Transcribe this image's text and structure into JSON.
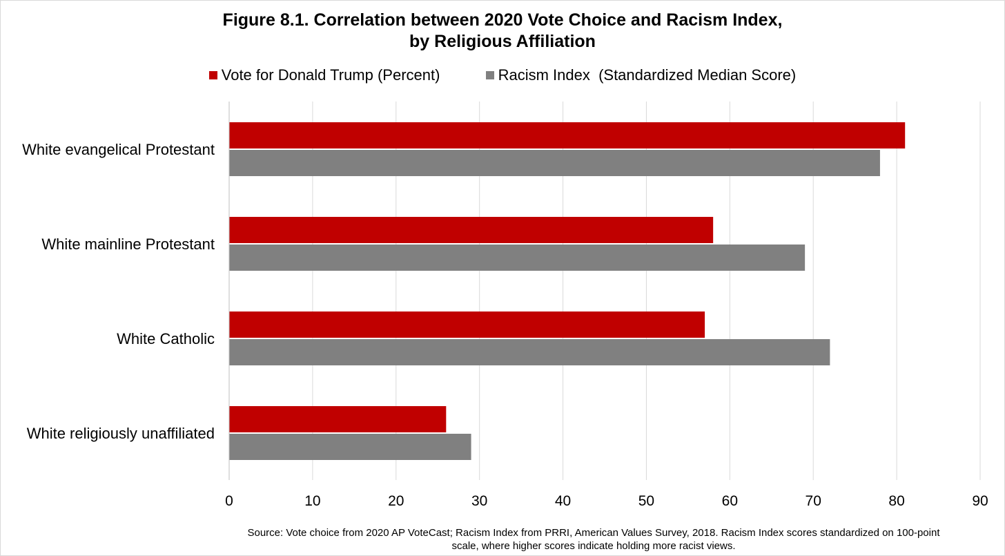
{
  "chart_data": {
    "type": "bar",
    "orientation": "horizontal",
    "title_lines": [
      "Figure 8.1. Correlation between 2020 Vote Choice and Racism Index,",
      "by Religious Affiliation"
    ],
    "categories": [
      "White evangelical Protestant",
      "White mainline Protestant",
      "White Catholic",
      "White religiously unaffiliated"
    ],
    "series": [
      {
        "name": "Vote for Donald Trump (Percent)",
        "values": [
          81,
          58,
          57,
          26
        ],
        "color": "#c00000"
      },
      {
        "name": "Racism Index  (Standardized Median Score)",
        "values": [
          78,
          69,
          72,
          29
        ],
        "color": "#808080"
      }
    ],
    "xlim": [
      0,
      90
    ],
    "xticks": [
      "0",
      "10",
      "20",
      "30",
      "40",
      "50",
      "60",
      "70",
      "80",
      "90"
    ],
    "grid": true,
    "legend_position": "top",
    "source_lines": [
      "Source: Vote choice from 2020 AP VoteCast; Racism Index from PRRI, American Values Survey, 2018. Racism Index scores standardized on 100-point",
      "scale, where higher scores indicate holding more racist views."
    ]
  }
}
